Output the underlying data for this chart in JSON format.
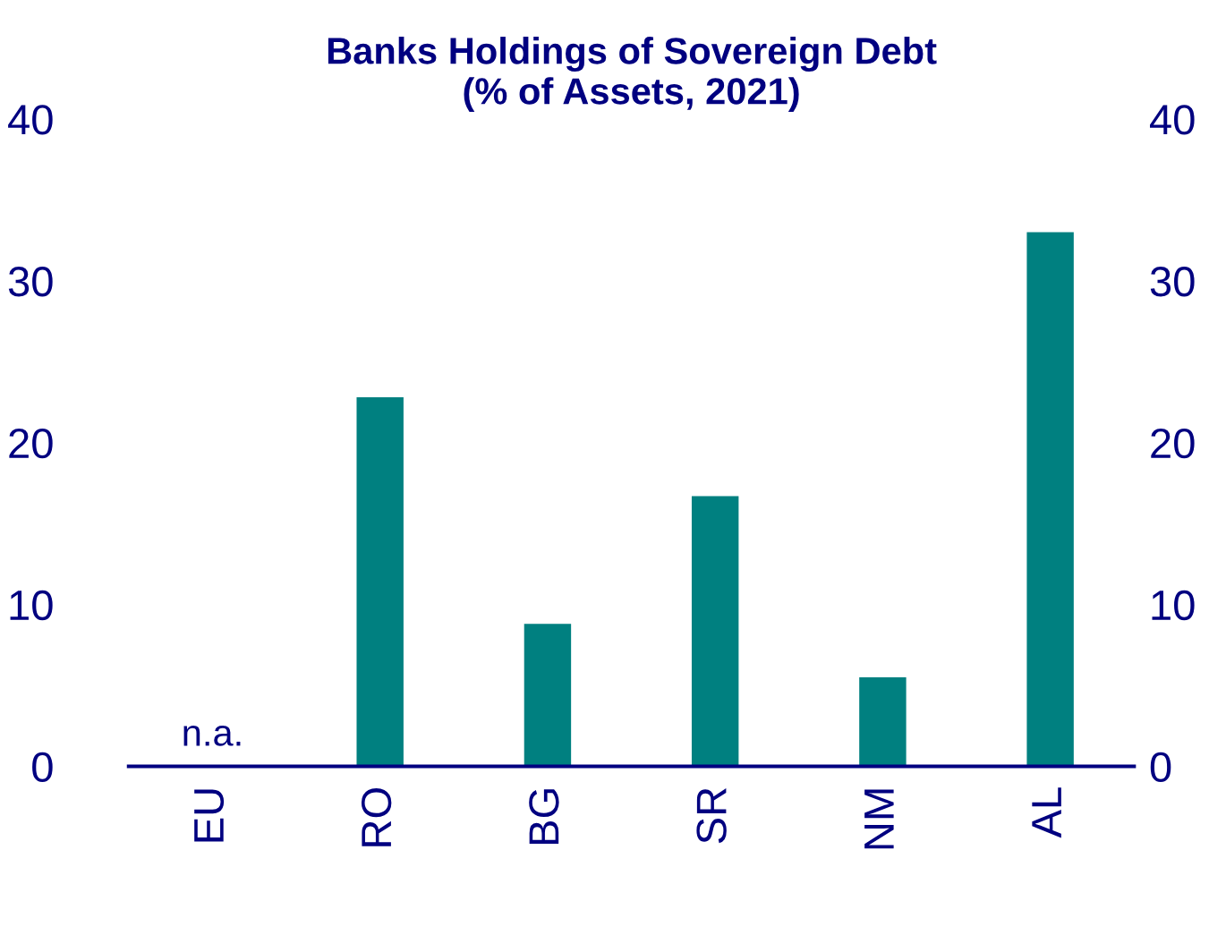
{
  "chart_data": {
    "type": "bar",
    "title": "Banks Holdings of Sovereign Debt\n(% of Assets, 2021)",
    "categories": [
      "EU",
      "RO",
      "BG",
      "SR",
      "NM",
      "AL"
    ],
    "values": [
      null,
      22.8,
      8.8,
      16.7,
      5.5,
      33.0
    ],
    "color": "#008080",
    "ylim": [
      0,
      40
    ],
    "yticks": [
      0,
      10,
      20,
      30,
      40
    ],
    "y2lim": [
      0,
      40
    ],
    "y2ticks": [
      0,
      10,
      20,
      30,
      40
    ],
    "annotations": [
      "n.a."
    ],
    "grid": false,
    "legend": false
  }
}
